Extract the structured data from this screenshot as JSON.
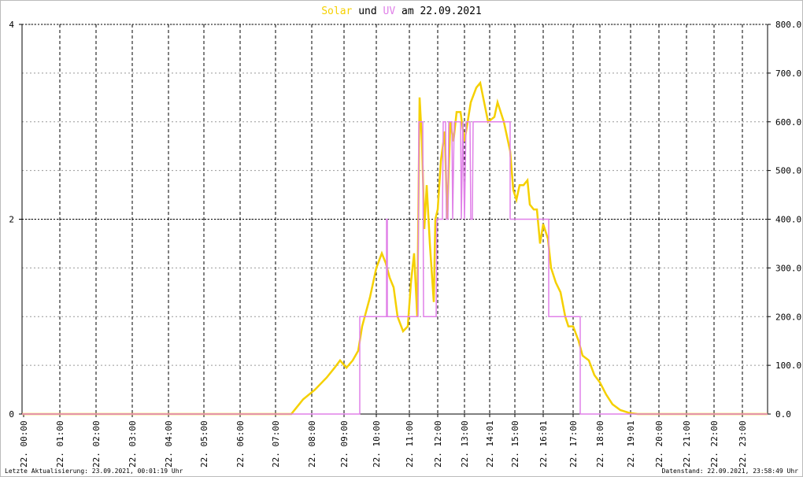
{
  "chart_data": {
    "type": "line",
    "title_parts": [
      "Solar",
      "und",
      "UV",
      "am 22.09.2021"
    ],
    "footer_left": "Letzte Aktualisierung: 23.09.2021, 00:01:19 Uhr",
    "footer_right": "Datenstand: 22.09.2021, 23:58:49 Uhr",
    "xlim": [
      0,
      947
    ],
    "xticks": [
      {
        "value": 2,
        "label": "22. 00:00"
      },
      {
        "value": 48,
        "label": "22. 01:00"
      },
      {
        "value": 94,
        "label": "22. 02:00"
      },
      {
        "value": 140,
        "label": "22. 03:00"
      },
      {
        "value": 186,
        "label": "22. 04:00"
      },
      {
        "value": 231,
        "label": "22. 05:00"
      },
      {
        "value": 277,
        "label": "22. 06:00"
      },
      {
        "value": 322,
        "label": "22. 07:00"
      },
      {
        "value": 368,
        "label": "22. 08:00"
      },
      {
        "value": 409,
        "label": "22. 09:00"
      },
      {
        "value": 450,
        "label": "22. 10:00"
      },
      {
        "value": 492,
        "label": "22. 11:00"
      },
      {
        "value": 528,
        "label": "22. 12:00"
      },
      {
        "value": 562,
        "label": "22. 13:00"
      },
      {
        "value": 594,
        "label": "22. 14:01"
      },
      {
        "value": 626,
        "label": "22. 15:00"
      },
      {
        "value": 662,
        "label": "22. 16:01"
      },
      {
        "value": 700,
        "label": "22. 17:00"
      },
      {
        "value": 734,
        "label": "22. 18:00"
      },
      {
        "value": 773,
        "label": "22. 19:01"
      },
      {
        "value": 809,
        "label": "22. 20:00"
      },
      {
        "value": 844,
        "label": "22. 21:00"
      },
      {
        "value": 879,
        "label": "22. 22:00"
      },
      {
        "value": 915,
        "label": "22. 23:00"
      }
    ],
    "ylim": [
      0,
      4
    ],
    "yticks": [
      0,
      2,
      4
    ],
    "y2lim": [
      0,
      800
    ],
    "y2ticks": [
      {
        "value": 0,
        "label": "0.0"
      },
      {
        "value": 100,
        "label": "100.0"
      },
      {
        "value": 200,
        "label": "200.0"
      },
      {
        "value": 300,
        "label": "300.0"
      },
      {
        "value": 400,
        "label": "400.0"
      },
      {
        "value": 500,
        "label": "500.0"
      },
      {
        "value": 600,
        "label": "600.0"
      },
      {
        "value": 700,
        "label": "700.0"
      },
      {
        "value": 800,
        "label": "800.0"
      }
    ],
    "grid": true,
    "series": [
      {
        "name": "Solar",
        "color": "#f5d000",
        "axis": "y2",
        "x": [
          0,
          342,
          347,
          357,
          372,
          387,
          397,
          404,
          412,
          420,
          427,
          432,
          442,
          450,
          457,
          462,
          467,
          472,
          477,
          484,
          490,
          494,
          498,
          502,
          505,
          508,
          511,
          514,
          518,
          523,
          525,
          528,
          532,
          537,
          540,
          544,
          548,
          552,
          557,
          562,
          566,
          570,
          577,
          582,
          587,
          592,
          600,
          604,
          612,
          620,
          624,
          628,
          632,
          637,
          642,
          645,
          650,
          654,
          658,
          662,
          668,
          672,
          678,
          684,
          690,
          694,
          700,
          707,
          712,
          720,
          727,
          734,
          742,
          750,
          760,
          772,
          782,
          947
        ],
        "values": [
          0,
          0,
          10,
          30,
          50,
          75,
          95,
          110,
          95,
          110,
          130,
          180,
          240,
          300,
          330,
          310,
          280,
          260,
          200,
          170,
          180,
          270,
          330,
          200,
          650,
          560,
          380,
          470,
          350,
          230,
          400,
          420,
          520,
          580,
          400,
          600,
          560,
          620,
          620,
          560,
          600,
          640,
          670,
          680,
          640,
          600,
          610,
          640,
          600,
          540,
          460,
          440,
          470,
          470,
          480,
          430,
          420,
          420,
          350,
          390,
          360,
          300,
          270,
          250,
          200,
          180,
          180,
          150,
          120,
          110,
          80,
          65,
          40,
          20,
          8,
          2,
          0,
          0
        ]
      },
      {
        "name": "UV",
        "color": "#e080e8",
        "x": [
          0,
          429,
          429,
          463,
          463,
          464,
          464,
          503,
          504,
          509,
          510,
          526,
          527,
          534,
          535,
          538,
          539,
          541,
          542,
          546,
          547,
          549,
          557,
          558,
          560,
          562,
          564,
          569,
          570,
          572,
          573,
          620,
          620,
          669,
          669,
          709,
          709,
          947
        ],
        "values": [
          0,
          0,
          1,
          1,
          2,
          2,
          1,
          1,
          3,
          3,
          1,
          1,
          2,
          2,
          3,
          3,
          2,
          2,
          3,
          3,
          2,
          3,
          3,
          2,
          3,
          2,
          3,
          3,
          2,
          2,
          3,
          3,
          2,
          2,
          1,
          1,
          0,
          0
        ]
      }
    ]
  }
}
